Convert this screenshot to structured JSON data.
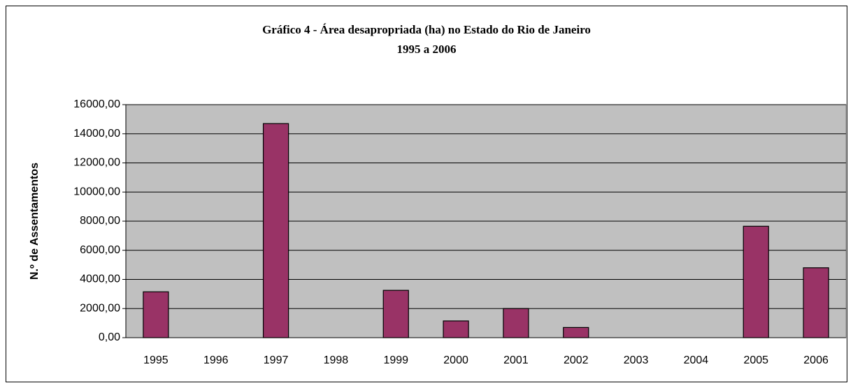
{
  "chart_data": {
    "type": "bar",
    "title": "Gráfico 4 - Área desapropriada (ha) no Estado do Rio de Janeiro",
    "subtitle": "1995 a 2006",
    "y_label": "N.º de Assentamentos",
    "categories": [
      "1995",
      "1996",
      "1997",
      "1998",
      "1999",
      "2000",
      "2001",
      "2002",
      "2003",
      "2004",
      "2005",
      "2006"
    ],
    "values": [
      3150,
      0,
      14700,
      0,
      3250,
      1150,
      2000,
      700,
      0,
      0,
      7650,
      4800
    ],
    "color": "#993366",
    "ylim": [
      0,
      16000
    ],
    "yticks": [
      {
        "value": 0,
        "label": "0,00"
      },
      {
        "value": 2000,
        "label": "2000,00"
      },
      {
        "value": 4000,
        "label": "4000,00"
      },
      {
        "value": 6000,
        "label": "6000,00"
      },
      {
        "value": 8000,
        "label": "8000,00"
      },
      {
        "value": 10000,
        "label": "10000,00"
      },
      {
        "value": 12000,
        "label": "12000,00"
      },
      {
        "value": 14000,
        "label": "14000,00"
      },
      {
        "value": 16000,
        "label": "16000,00"
      }
    ],
    "grid": true
  }
}
